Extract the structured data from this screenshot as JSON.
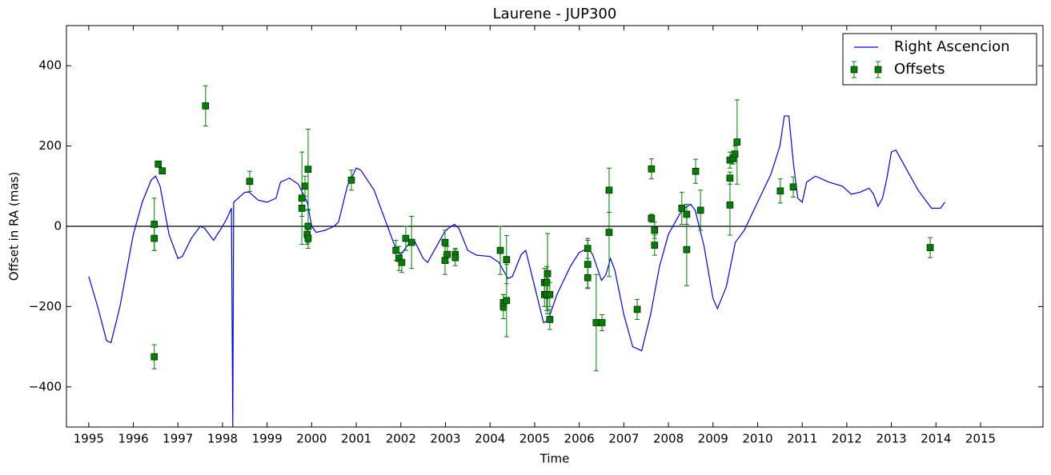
{
  "chart_data": {
    "type": "line",
    "title": "Laurene - JUP300",
    "xlabel": "Time",
    "ylabel": "Offset in RA (mas)",
    "xlim": [
      1994.5,
      2016.4
    ],
    "ylim": [
      -500,
      500
    ],
    "xticks": [
      1995,
      1996,
      1997,
      1998,
      1999,
      2000,
      2001,
      2002,
      2003,
      2004,
      2005,
      2006,
      2007,
      2008,
      2009,
      2010,
      2011,
      2012,
      2013,
      2014,
      2015
    ],
    "yticks": [
      {
        "value": -400,
        "label": "−400"
      },
      {
        "value": -200,
        "label": "−200"
      },
      0,
      200,
      400
    ],
    "hline": 0,
    "legend": "upper right",
    "series": [
      {
        "name": "Right Ascencion",
        "type": "line",
        "color": "#0000ff",
        "x": [
          1995.0,
          1995.2,
          1995.4,
          1995.5,
          1995.7,
          1996.0,
          1996.2,
          1996.4,
          1996.5,
          1996.6,
          1996.8,
          1997.0,
          1997.1,
          1997.3,
          1997.5,
          1997.6,
          1997.8,
          1998.0,
          1998.1,
          1998.2,
          1998.23,
          1998.25,
          1998.5,
          1998.6,
          1998.8,
          1999.0,
          1999.2,
          1999.3,
          1999.5,
          1999.7,
          1999.9,
          2000.0,
          2000.1,
          2000.3,
          2000.5,
          2000.6,
          2000.8,
          2001.0,
          2001.1,
          2001.4,
          2001.7,
          2001.9,
          2002.0,
          2002.2,
          2002.3,
          2002.5,
          2002.6,
          2002.8,
          2003.0,
          2003.2,
          2003.3,
          2003.5,
          2003.7,
          2004.0,
          2004.2,
          2004.4,
          2004.5,
          2004.7,
          2004.8,
          2005.0,
          2005.2,
          2005.3,
          2005.5,
          2005.8,
          2006.0,
          2006.2,
          2006.3,
          2006.5,
          2006.6,
          2006.7,
          2006.8,
          2007.0,
          2007.2,
          2007.4,
          2007.6,
          2007.8,
          2008.0,
          2008.3,
          2008.5,
          2008.6,
          2008.8,
          2009.0,
          2009.1,
          2009.3,
          2009.5,
          2009.7,
          2010.0,
          2010.3,
          2010.5,
          2010.6,
          2010.7,
          2010.8,
          2010.9,
          2011.0,
          2011.1,
          2011.3,
          2011.6,
          2011.9,
          2012.1,
          2012.3,
          2012.5,
          2012.6,
          2012.7,
          2012.8,
          2012.9,
          2013.0,
          2013.1,
          2013.3,
          2013.6,
          2013.9,
          2014.1,
          2014.2
        ],
        "values": [
          -125,
          -200,
          -285,
          -290,
          -200,
          -20,
          60,
          115,
          125,
          100,
          -20,
          -80,
          -75,
          -30,
          0,
          -5,
          -35,
          0,
          20,
          45,
          -500,
          60,
          85,
          85,
          65,
          60,
          70,
          110,
          120,
          105,
          60,
          0,
          -15,
          -10,
          0,
          10,
          100,
          145,
          140,
          90,
          0,
          -60,
          -70,
          -40,
          -35,
          -80,
          -90,
          -50,
          -10,
          5,
          -5,
          -60,
          -72,
          -75,
          -90,
          -130,
          -125,
          -70,
          -60,
          -150,
          -240,
          -235,
          -170,
          -100,
          -65,
          -55,
          -70,
          -135,
          -120,
          -80,
          -110,
          -220,
          -300,
          -310,
          -220,
          -100,
          -20,
          40,
          55,
          40,
          -50,
          -180,
          -205,
          -150,
          -40,
          -10,
          60,
          130,
          200,
          275,
          275,
          160,
          70,
          60,
          110,
          125,
          110,
          100,
          80,
          85,
          95,
          80,
          50,
          70,
          120,
          185,
          190,
          150,
          90,
          45,
          45,
          60
        ]
      },
      {
        "name": "Offsets",
        "type": "errorbar",
        "color": "#008000",
        "x": [
          1996.47,
          1996.47,
          1996.47,
          1996.56,
          1996.65,
          1997.62,
          1998.61,
          1999.78,
          1999.78,
          1999.85,
          1999.9,
          1999.92,
          1999.92,
          1999.92,
          2000.89,
          2001.89,
          2001.96,
          2002.02,
          2002.11,
          2002.24,
          2002.99,
          2002.99,
          2003.04,
          2003.22,
          2003.22,
          2004.23,
          2004.3,
          2004.3,
          2004.37,
          2004.37,
          2005.22,
          2005.22,
          2005.27,
          2005.27,
          2005.29,
          2005.34,
          2005.34,
          2006.19,
          2006.19,
          2006.19,
          2006.38,
          2006.51,
          2006.67,
          2006.67,
          2007.3,
          2007.62,
          2007.62,
          2007.69,
          2007.69,
          2008.3,
          2008.41,
          2008.41,
          2008.61,
          2008.72,
          2009.38,
          2009.38,
          2009.38,
          2009.45,
          2009.49,
          2009.54,
          2010.51,
          2010.8,
          2013.87
        ],
        "values": [
          -30,
          5,
          -325,
          155,
          138,
          300,
          112,
          70,
          45,
          100,
          -20,
          142,
          -30,
          0,
          115,
          -60,
          -80,
          -90,
          -30,
          -40,
          -40,
          -85,
          -70,
          -70,
          -78,
          -60,
          -200,
          -190,
          -83,
          -185,
          -140,
          -170,
          -140,
          -170,
          -118,
          -170,
          -232,
          -55,
          -95,
          -128,
          -240,
          -240,
          90,
          -15,
          -207,
          143,
          20,
          -10,
          -47,
          45,
          -58,
          30,
          137,
          40,
          165,
          120,
          53,
          170,
          180,
          210,
          88,
          98,
          -53
        ],
        "errors": [
          30,
          65,
          30,
          5,
          5,
          50,
          25,
          115,
          20,
          25,
          25,
          100,
          25,
          40,
          25,
          25,
          30,
          25,
          30,
          65,
          30,
          35,
          20,
          15,
          20,
          60,
          30,
          20,
          60,
          90,
          35,
          30,
          40,
          40,
          100,
          30,
          25,
          25,
          60,
          25,
          120,
          20,
          55,
          110,
          25,
          25,
          10,
          20,
          25,
          40,
          90,
          25,
          30,
          50,
          20,
          15,
          75,
          15,
          20,
          105,
          30,
          25,
          25
        ]
      }
    ]
  }
}
